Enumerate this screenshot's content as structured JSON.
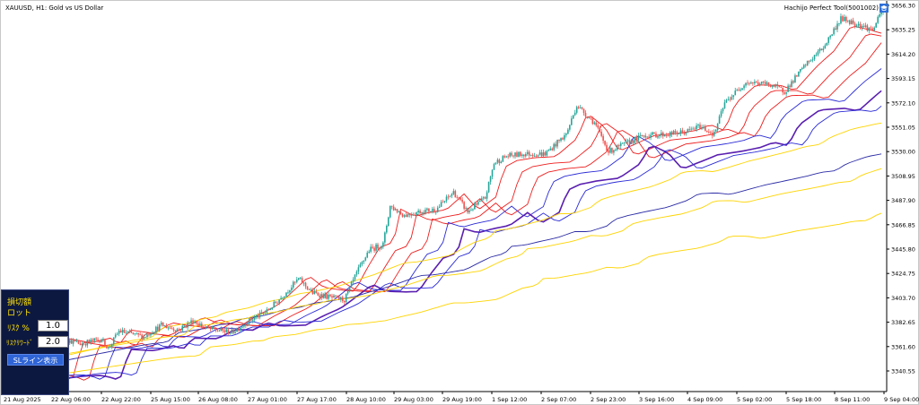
{
  "header": {
    "symbol_label": "XAUUSD, H1:  Gold vs US Dollar",
    "ea_label": "Hachijo Perfect Tool(5001002)",
    "ea_icon": "graduation-cap-icon"
  },
  "panel": {
    "stop_loss_label": "損切額",
    "lot_label": "ロット",
    "risk_label": "ﾘｽｸ %",
    "risk_value": "1.0",
    "reward_label": "ﾘｽｸﾘﾜｰﾄﾞ",
    "reward_value": "2.0",
    "sl_button_label": "SLライン表示",
    "background_color": "#0d1840",
    "text_color": "#ffe200",
    "button_color": "#2f64d6"
  },
  "chart_data": {
    "type": "candlestick",
    "symbol": "XAUUSD",
    "timeframe": "H1",
    "y_ticks": [
      "3656.30",
      "3635.25",
      "3614.20",
      "3593.15",
      "3572.10",
      "3551.05",
      "3530.00",
      "3508.95",
      "3487.90",
      "3466.85",
      "3445.80",
      "3424.75",
      "3403.70",
      "3382.65",
      "3361.60",
      "3340.55"
    ],
    "ylim": [
      3320,
      3665
    ],
    "x_ticks": [
      "21 Aug 2025",
      "22 Aug 06:00",
      "22 Aug 22:00",
      "25 Aug 15:00",
      "26 Aug 08:00",
      "27 Aug 01:00",
      "27 Aug 17:00",
      "28 Aug 10:00",
      "29 Aug 03:00",
      "29 Aug 19:00",
      "1 Sep 12:00",
      "2 Sep 07:00",
      "2 Sep 23:00",
      "3 Sep 16:00",
      "4 Sep 09:00",
      "5 Sep 02:00",
      "5 Sep 18:00",
      "8 Sep 11:00",
      "9 Sep 04:00"
    ],
    "bull_color": "#26a69a",
    "bear_color": "#ef5350",
    "candle_close_path": [
      [
        0,
        3340
      ],
      [
        10,
        3338
      ],
      [
        16,
        3333
      ],
      [
        20,
        3328
      ],
      [
        22,
        3338
      ],
      [
        26,
        3370
      ],
      [
        40,
        3364
      ],
      [
        52,
        3368
      ],
      [
        56,
        3360
      ],
      [
        62,
        3375
      ],
      [
        76,
        3370
      ],
      [
        86,
        3380
      ],
      [
        96,
        3376
      ],
      [
        104,
        3384
      ],
      [
        112,
        3377
      ],
      [
        126,
        3374
      ],
      [
        136,
        3384
      ],
      [
        146,
        3392
      ],
      [
        154,
        3404
      ],
      [
        164,
        3420
      ],
      [
        172,
        3408
      ],
      [
        182,
        3404
      ],
      [
        190,
        3402
      ],
      [
        197,
        3425
      ],
      [
        204,
        3445
      ],
      [
        212,
        3450
      ],
      [
        216,
        3483
      ],
      [
        224,
        3475
      ],
      [
        232,
        3478
      ],
      [
        242,
        3480
      ],
      [
        252,
        3495
      ],
      [
        260,
        3478
      ],
      [
        270,
        3490
      ],
      [
        275,
        3520
      ],
      [
        282,
        3526
      ],
      [
        292,
        3528
      ],
      [
        304,
        3528
      ],
      [
        316,
        3545
      ],
      [
        322,
        3570
      ],
      [
        332,
        3555
      ],
      [
        340,
        3530
      ],
      [
        350,
        3537
      ],
      [
        360,
        3544
      ],
      [
        374,
        3545
      ],
      [
        384,
        3547
      ],
      [
        392,
        3552
      ],
      [
        400,
        3545
      ],
      [
        406,
        3572
      ],
      [
        418,
        3590
      ],
      [
        432,
        3588
      ],
      [
        440,
        3582
      ],
      [
        452,
        3605
      ],
      [
        462,
        3620
      ],
      [
        472,
        3645
      ],
      [
        482,
        3640
      ],
      [
        490,
        3635
      ],
      [
        497,
        3656
      ]
    ],
    "moving_averages": [
      {
        "color": "#ee1d1d",
        "start": 3345,
        "end": 3614
      },
      {
        "color": "#ee1d1d",
        "start": 3342,
        "end": 3604
      },
      {
        "color": "#ee1d1d",
        "start": 3338,
        "end": 3597
      },
      {
        "color": "#2b2bd6",
        "start": 3338,
        "end": 3590
      },
      {
        "color": "#5a1fb0",
        "start": 3335,
        "end": 3571
      },
      {
        "color": "#2b2bd6",
        "start": 3337,
        "end": 3570
      },
      {
        "color": "#ffd400",
        "start": 3343,
        "end": 3550
      },
      {
        "color": "#2b2ba6",
        "start": 3340,
        "end": 3518
      },
      {
        "color": "#ffd400",
        "start": 3348,
        "end": 3503
      },
      {
        "color": "#ffd400",
        "start": 3330,
        "end": 3460
      }
    ]
  }
}
